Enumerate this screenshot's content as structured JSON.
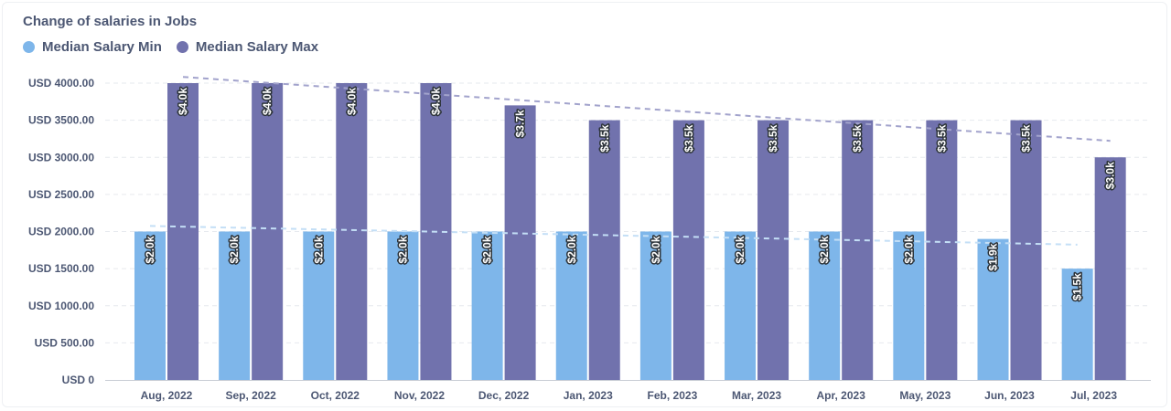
{
  "chart_data": {
    "type": "bar",
    "title": "Change of salaries in Jobs",
    "categories": [
      "Aug, 2022",
      "Sep, 2022",
      "Oct, 2022",
      "Nov, 2022",
      "Dec, 2022",
      "Jan, 2023",
      "Feb, 2023",
      "Mar, 2023",
      "Apr, 2023",
      "May, 2023",
      "Jun, 2023",
      "Jul, 2023"
    ],
    "series": [
      {
        "name": "Median Salary Min",
        "color": "#7eb6ea",
        "values": [
          2000,
          2000,
          2000,
          2000,
          2000,
          2000,
          2000,
          2000,
          2000,
          2000,
          1900,
          1500
        ],
        "data_labels": [
          "$2.0k",
          "$2.0k",
          "$2.0k",
          "$2.0k",
          "$2.0k",
          "$2.0k",
          "$2.0k",
          "$2.0k",
          "$2.0k",
          "$2.0k",
          "$1.9k",
          "$1.5k"
        ],
        "trend": [
          2075,
          1823
        ]
      },
      {
        "name": "Median Salary Max",
        "color": "#7172ad",
        "values": [
          4000,
          4000,
          4000,
          4000,
          3700,
          3500,
          3500,
          3500,
          3500,
          3500,
          3500,
          3000
        ],
        "data_labels": [
          "$4.0k",
          "$4.0k",
          "$4.0k",
          "$4.0k",
          "$3.7k",
          "$3.5k",
          "$3.5k",
          "$3.5k",
          "$3.5k",
          "$3.5k",
          "$3.5k",
          "$3.0k"
        ],
        "trend": [
          4083,
          3222
        ]
      }
    ],
    "y_ticks": [
      {
        "value": 0,
        "label": "USD 0"
      },
      {
        "value": 500,
        "label": "USD 500.00"
      },
      {
        "value": 1000,
        "label": "USD 1000.00"
      },
      {
        "value": 1500,
        "label": "USD 1500.00"
      },
      {
        "value": 2000,
        "label": "USD 2000.00"
      },
      {
        "value": 2500,
        "label": "USD 2500.00"
      },
      {
        "value": 3000,
        "label": "USD 3000.00"
      },
      {
        "value": 3500,
        "label": "USD 3500.00"
      },
      {
        "value": 4000,
        "label": "USD 4000.00"
      }
    ],
    "ylim": [
      0,
      4000
    ],
    "grid": true,
    "legend_position": "top-left",
    "trendlines": true,
    "xlabel": "",
    "ylabel": ""
  }
}
